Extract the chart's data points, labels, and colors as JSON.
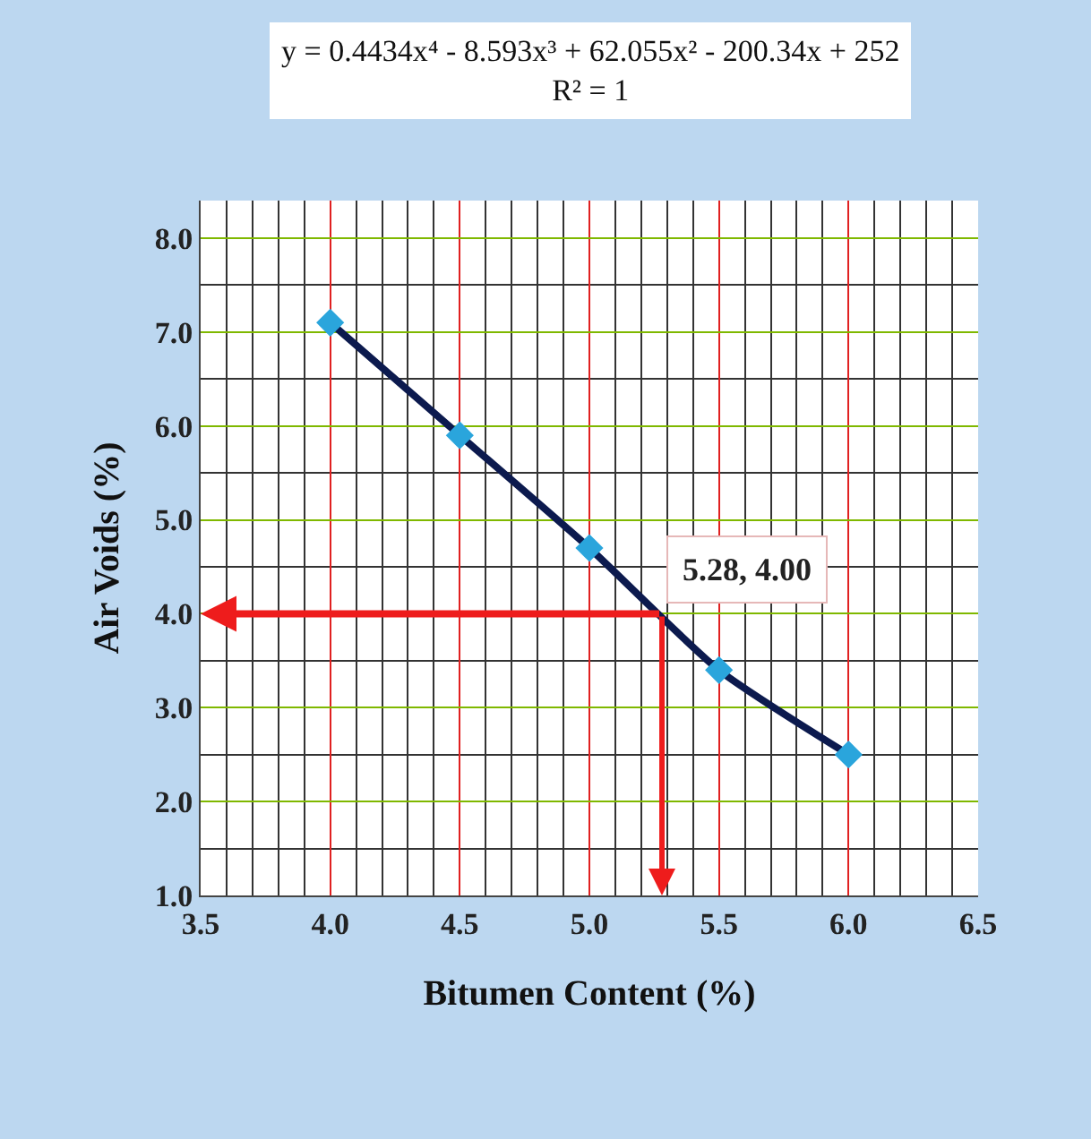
{
  "chart_data": {
    "type": "scatter",
    "title": "y = 0.4434x⁴ - 8.593x³ + 62.055x² - 200.34x + 252",
    "subtitle": "R² = 1",
    "xlabel": "Bitumen Content (%)",
    "ylabel": "Air Voids (%)",
    "x": [
      4.0,
      4.5,
      5.0,
      5.5,
      6.0
    ],
    "series": [
      {
        "type": "line",
        "color": "#0c1a4e",
        "values": [
          7.1,
          5.9,
          4.7,
          3.4,
          2.5
        ],
        "marker": "none"
      },
      {
        "color": "#2aa5dc",
        "values": [
          7.1,
          5.9,
          4.7,
          3.4,
          2.5
        ],
        "marker": "diamond"
      }
    ],
    "xlim": [
      3.5,
      6.5
    ],
    "xticks": [
      {
        "value": 3.5,
        "label": "3.5"
      },
      {
        "value": 4.0,
        "label": "4.0"
      },
      {
        "value": 4.5,
        "label": "4.5"
      },
      {
        "value": 5.0,
        "label": "5.0"
      },
      {
        "value": 5.5,
        "label": "5.5"
      },
      {
        "value": 6.0,
        "label": "6.0"
      },
      {
        "value": 6.5,
        "label": "6.5"
      }
    ],
    "ylim": [
      1.0,
      8.4
    ],
    "yticks": [
      {
        "value": 1,
        "label": "1.0"
      },
      {
        "value": 2,
        "label": "2.0"
      },
      {
        "value": 3,
        "label": "3.0"
      },
      {
        "value": 4,
        "label": "4.0"
      },
      {
        "value": 5,
        "label": "5.0"
      },
      {
        "value": 6,
        "label": "6.0"
      },
      {
        "value": 7,
        "label": "7.0"
      },
      {
        "value": 8,
        "label": "8.0"
      }
    ],
    "grid": true,
    "ref_lines": [
      {
        "axis": "y",
        "value": 4.0,
        "color": "#ee1c1c"
      },
      {
        "axis": "x",
        "value": 5.28,
        "color": "#ee1c1c"
      }
    ],
    "annotations": [
      {
        "text": "5.28, 4.00",
        "x": 5.28,
        "y": 4.0
      }
    ]
  }
}
